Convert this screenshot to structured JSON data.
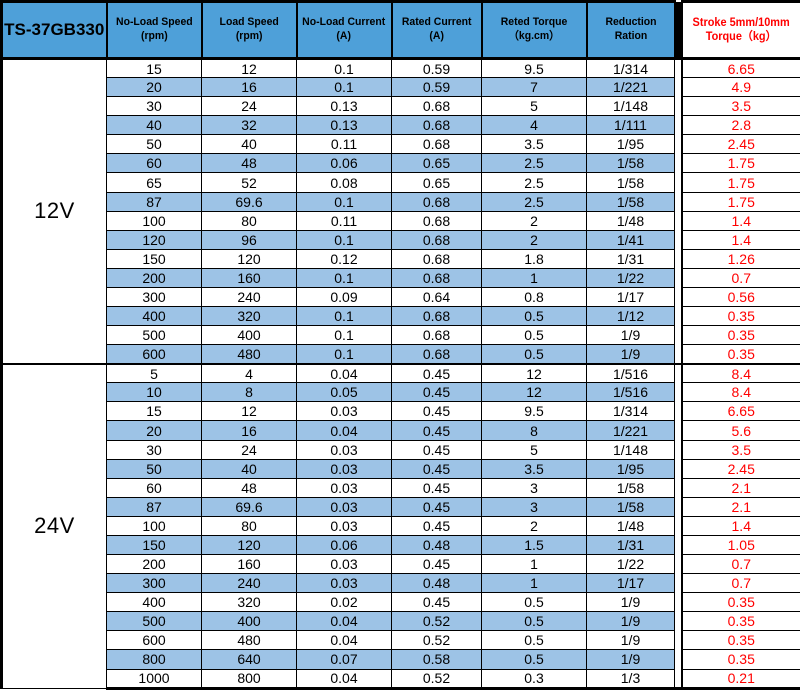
{
  "model": "TS-37GB330",
  "colors": {
    "header_blue": "#4EA0D9",
    "stripe_blue": "#9DC3E6",
    "accent_red": "#FF0000",
    "border_black": "#000000"
  },
  "headers": [
    "No-Load Speed\n(rpm)",
    "Load Speed\n(rpm)",
    "No-Load Current\n(A)",
    "Rated Current\n(A)",
    "Reted Torque\n（kg.cm）",
    "Reduction Ration"
  ],
  "stroke_header": "Stroke 5mm/10mm\nTorque（kg）",
  "chart_data": {
    "type": "table",
    "title": "TS-37GB330 motor specifications",
    "columns": [
      "No-Load Speed (rpm)",
      "Load Speed (rpm)",
      "No-Load Current (A)",
      "Rated Current (A)",
      "Reted Torque (kg.cm)",
      "Reduction Ration",
      "Stroke 5mm/10mm Torque (kg)"
    ]
  },
  "sections": [
    {
      "voltage": "12V",
      "rows": [
        [
          "15",
          "12",
          "0.1",
          "0.59",
          "9.5",
          "1/314",
          "6.65"
        ],
        [
          "20",
          "16",
          "0.1",
          "0.59",
          "7",
          "1/221",
          "4.9"
        ],
        [
          "30",
          "24",
          "0.13",
          "0.68",
          "5",
          "1/148",
          "3.5"
        ],
        [
          "40",
          "32",
          "0.13",
          "0.68",
          "4",
          "1/111",
          "2.8"
        ],
        [
          "50",
          "40",
          "0.11",
          "0.68",
          "3.5",
          "1/95",
          "2.45"
        ],
        [
          "60",
          "48",
          "0.06",
          "0.65",
          "2.5",
          "1/58",
          "1.75"
        ],
        [
          "65",
          "52",
          "0.08",
          "0.65",
          "2.5",
          "1/58",
          "1.75"
        ],
        [
          "87",
          "69.6",
          "0.1",
          "0.68",
          "2.5",
          "1/58",
          "1.75"
        ],
        [
          "100",
          "80",
          "0.11",
          "0.68",
          "2",
          "1/48",
          "1.4"
        ],
        [
          "120",
          "96",
          "0.1",
          "0.68",
          "2",
          "1/41",
          "1.4"
        ],
        [
          "150",
          "120",
          "0.12",
          "0.68",
          "1.8",
          "1/31",
          "1.26"
        ],
        [
          "200",
          "160",
          "0.1",
          "0.68",
          "1",
          "1/22",
          "0.7"
        ],
        [
          "300",
          "240",
          "0.09",
          "0.64",
          "0.8",
          "1/17",
          "0.56"
        ],
        [
          "400",
          "320",
          "0.1",
          "0.68",
          "0.5",
          "1/12",
          "0.35"
        ],
        [
          "500",
          "400",
          "0.1",
          "0.68",
          "0.5",
          "1/9",
          "0.35"
        ],
        [
          "600",
          "480",
          "0.1",
          "0.68",
          "0.5",
          "1/9",
          "0.35"
        ]
      ]
    },
    {
      "voltage": "24V",
      "rows": [
        [
          "5",
          "4",
          "0.04",
          "0.45",
          "12",
          "1/516",
          "8.4"
        ],
        [
          "10",
          "8",
          "0.05",
          "0.45",
          "12",
          "1/516",
          "8.4"
        ],
        [
          "15",
          "12",
          "0.03",
          "0.45",
          "9.5",
          "1/314",
          "6.65"
        ],
        [
          "20",
          "16",
          "0.04",
          "0.45",
          "8",
          "1/221",
          "5.6"
        ],
        [
          "30",
          "24",
          "0.03",
          "0.45",
          "5",
          "1/148",
          "3.5"
        ],
        [
          "50",
          "40",
          "0.03",
          "0.45",
          "3.5",
          "1/95",
          "2.45"
        ],
        [
          "60",
          "48",
          "0.03",
          "0.45",
          "3",
          "1/58",
          "2.1"
        ],
        [
          "87",
          "69.6",
          "0.03",
          "0.45",
          "3",
          "1/58",
          "2.1"
        ],
        [
          "100",
          "80",
          "0.03",
          "0.45",
          "2",
          "1/48",
          "1.4"
        ],
        [
          "150",
          "120",
          "0.06",
          "0.48",
          "1.5",
          "1/31",
          "1.05"
        ],
        [
          "200",
          "160",
          "0.03",
          "0.45",
          "1",
          "1/22",
          "0.7"
        ],
        [
          "300",
          "240",
          "0.03",
          "0.48",
          "1",
          "1/17",
          "0.7"
        ],
        [
          "400",
          "320",
          "0.02",
          "0.45",
          "0.5",
          "1/9",
          "0.35"
        ],
        [
          "500",
          "400",
          "0.04",
          "0.52",
          "0.5",
          "1/9",
          "0.35"
        ],
        [
          "600",
          "480",
          "0.04",
          "0.52",
          "0.5",
          "1/9",
          "0.35"
        ],
        [
          "800",
          "640",
          "0.07",
          "0.58",
          "0.5",
          "1/9",
          "0.35"
        ],
        [
          "1000",
          "800",
          "0.04",
          "0.52",
          "0.3",
          "1/3",
          "0.21"
        ]
      ]
    }
  ]
}
